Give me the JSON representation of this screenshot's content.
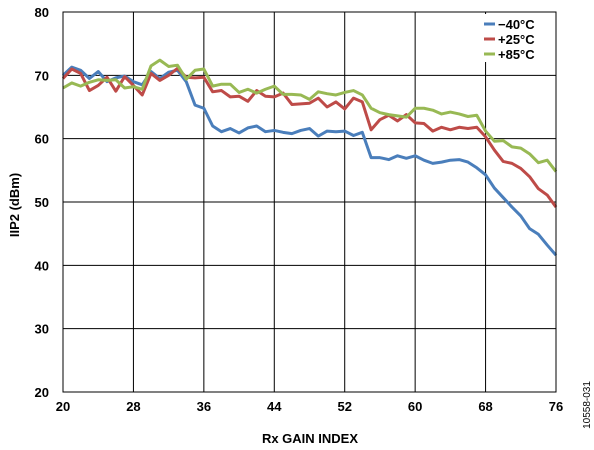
{
  "chart_data": {
    "type": "line",
    "xlabel": "Rx GAIN INDEX",
    "ylabel": "IIP2 (dBm)",
    "xlim": [
      20,
      76
    ],
    "ylim": [
      20,
      80
    ],
    "x_ticks": [
      "20",
      "28",
      "36",
      "44",
      "52",
      "60",
      "68",
      "76"
    ],
    "y_ticks": [
      "20",
      "30",
      "40",
      "50",
      "60",
      "70",
      "80"
    ],
    "grid": true,
    "legend_position": "top-right",
    "figure_id": "10558-031",
    "x": [
      20,
      21,
      22,
      23,
      24,
      25,
      26,
      27,
      28,
      29,
      30,
      31,
      32,
      33,
      34,
      35,
      36,
      37,
      38,
      39,
      40,
      41,
      42,
      43,
      44,
      45,
      46,
      47,
      48,
      49,
      50,
      51,
      52,
      53,
      54,
      55,
      56,
      57,
      58,
      59,
      60,
      61,
      62,
      63,
      64,
      65,
      66,
      67,
      68,
      69,
      70,
      71,
      72,
      73,
      74,
      75,
      76
    ],
    "series": [
      {
        "name": "−40°C",
        "color": "#4a7ebb",
        "values": [
          70.0,
          71.3,
          70.8,
          69.5,
          70.6,
          69.0,
          69.6,
          69.9,
          69.0,
          68.5,
          70.6,
          69.5,
          70.5,
          70.8,
          69.0,
          65.3,
          64.8,
          62.0,
          61.1,
          61.6,
          60.9,
          61.7,
          62.0,
          61.1,
          61.3,
          61.0,
          60.8,
          61.3,
          61.6,
          60.4,
          61.2,
          61.1,
          61.2,
          60.5,
          61.0,
          57.0,
          57.0,
          56.7,
          57.3,
          56.9,
          57.3,
          56.6,
          56.1,
          56.3,
          56.6,
          56.7,
          56.3,
          55.4,
          54.3,
          52.2,
          50.7,
          49.2,
          47.8,
          45.8,
          44.9,
          43.2,
          41.6
        ]
      },
      {
        "name": "+25°C",
        "color": "#be4b48",
        "values": [
          69.5,
          71.0,
          70.3,
          67.6,
          68.4,
          69.7,
          67.5,
          69.8,
          68.4,
          66.9,
          70.3,
          69.2,
          70.0,
          71.1,
          69.7,
          69.6,
          69.7,
          67.4,
          67.6,
          66.6,
          66.7,
          65.9,
          67.6,
          66.7,
          66.6,
          67.2,
          65.4,
          65.5,
          65.6,
          66.4,
          65.0,
          65.8,
          64.7,
          66.4,
          65.8,
          61.4,
          63.0,
          63.7,
          62.8,
          63.8,
          62.5,
          62.4,
          61.2,
          61.8,
          61.4,
          61.8,
          61.6,
          61.8,
          60.3,
          58.2,
          56.4,
          56.1,
          55.3,
          54.0,
          52.1,
          51.1,
          49.2
        ]
      },
      {
        "name": "+85°C",
        "color": "#98b954",
        "values": [
          68.0,
          68.8,
          68.3,
          68.9,
          69.3,
          69.2,
          69.3,
          68.0,
          68.2,
          67.8,
          71.5,
          72.4,
          71.4,
          71.6,
          69.4,
          70.8,
          71.0,
          68.3,
          68.6,
          68.6,
          67.3,
          67.8,
          67.2,
          67.8,
          68.3,
          67.0,
          67.0,
          66.9,
          66.2,
          67.4,
          67.1,
          66.9,
          67.3,
          67.6,
          66.9,
          64.8,
          64.1,
          63.8,
          63.6,
          63.4,
          64.8,
          64.8,
          64.5,
          63.9,
          64.2,
          63.9,
          63.5,
          63.7,
          61.2,
          59.6,
          59.7,
          58.7,
          58.5,
          57.6,
          56.2,
          56.6,
          54.8
        ]
      }
    ]
  }
}
